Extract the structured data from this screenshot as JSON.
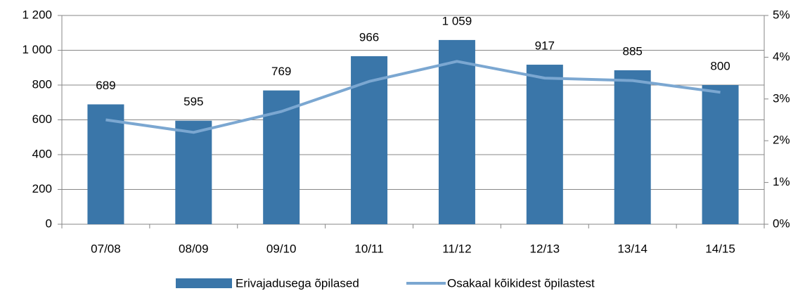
{
  "chart_data": {
    "type": "combo",
    "categories": [
      "07/08",
      "08/09",
      "09/10",
      "10/11",
      "11/12",
      "12/13",
      "13/14",
      "14/15"
    ],
    "series": [
      {
        "name": "Erivajadusega õpilased",
        "type": "bar",
        "color": "#3a76a9",
        "values": [
          689,
          595,
          769,
          966,
          1059,
          917,
          885,
          800
        ],
        "value_labels": [
          "689",
          "595",
          "769",
          "966",
          "1 059",
          "917",
          "885",
          "800"
        ]
      },
      {
        "name": "Osakaal kõikidest õpilastest",
        "type": "line",
        "axis": "y2",
        "color": "#7ba7d1",
        "values": [
          2.5,
          2.2,
          2.7,
          3.42,
          3.9,
          3.5,
          3.44,
          3.16
        ]
      }
    ],
    "ylim": [
      0,
      1200
    ],
    "yticks": [
      0,
      200,
      400,
      600,
      800,
      {
        "value": 1000,
        "label": "1 000"
      },
      {
        "value": 1200,
        "label": "1 200"
      }
    ],
    "y2lim": [
      0,
      5
    ],
    "y2ticks": [
      {
        "value": 0,
        "label": "0%"
      },
      {
        "value": 1,
        "label": "1%"
      },
      {
        "value": 2,
        "label": "2%"
      },
      {
        "value": 3,
        "label": "3%"
      },
      {
        "value": 4,
        "label": "4%"
      },
      {
        "value": 5,
        "label": "5%"
      }
    ],
    "grid": true,
    "legend": "bottom"
  }
}
